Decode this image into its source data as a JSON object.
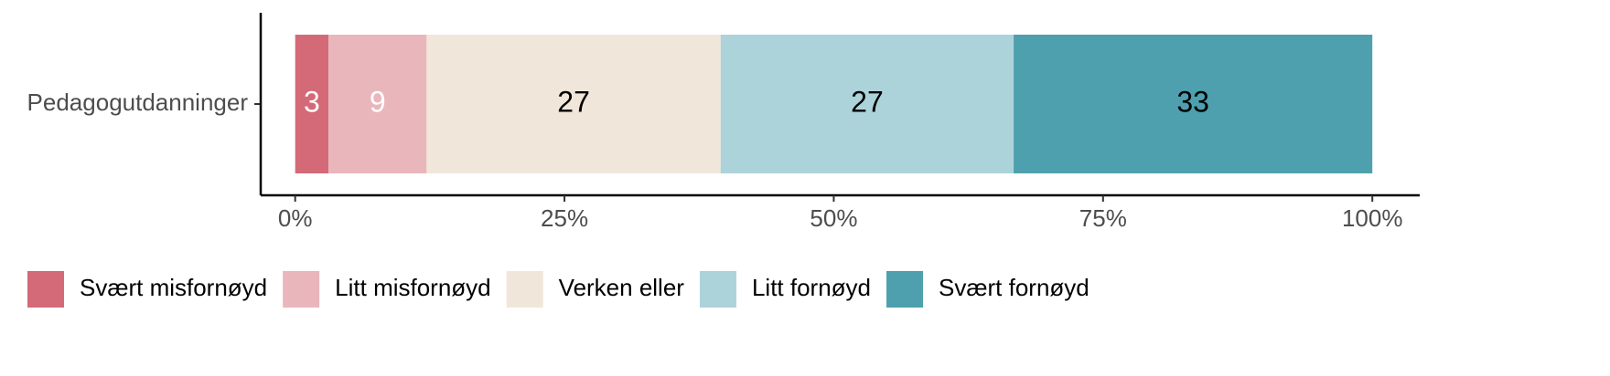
{
  "chart_data": {
    "type": "stacked-bar-horizontal",
    "categories": [
      "Pedagogutdanninger"
    ],
    "series": [
      {
        "name": "Svært misfornøyd",
        "color": "#d46a77",
        "label_color": "#ffffff",
        "values": [
          3.1
        ],
        "value_labels": [
          "3"
        ]
      },
      {
        "name": "Litt misfornøyd",
        "color": "#e9b6bc",
        "label_color": "#ffffff",
        "values": [
          9.1
        ],
        "value_labels": [
          "9"
        ]
      },
      {
        "name": "Verken eller",
        "color": "#f0e6da",
        "label_color": "#000000",
        "values": [
          27.3
        ],
        "value_labels": [
          "27"
        ]
      },
      {
        "name": "Litt fornøyd",
        "color": "#acd3da",
        "label_color": "#000000",
        "values": [
          27.2
        ],
        "value_labels": [
          "27"
        ]
      },
      {
        "name": "Svært fornøyd",
        "color": "#4ea0ae",
        "label_color": "#000000",
        "values": [
          33.3
        ],
        "value_labels": [
          "33"
        ]
      }
    ],
    "xlim": [
      -3.2,
      104.4
    ],
    "xticks": [
      {
        "value": 0,
        "label": "0%"
      },
      {
        "value": 25,
        "label": "25%"
      },
      {
        "value": 50,
        "label": "50%"
      },
      {
        "value": 75,
        "label": "75%"
      },
      {
        "value": 100,
        "label": "100%"
      }
    ],
    "legend": "bottom"
  }
}
